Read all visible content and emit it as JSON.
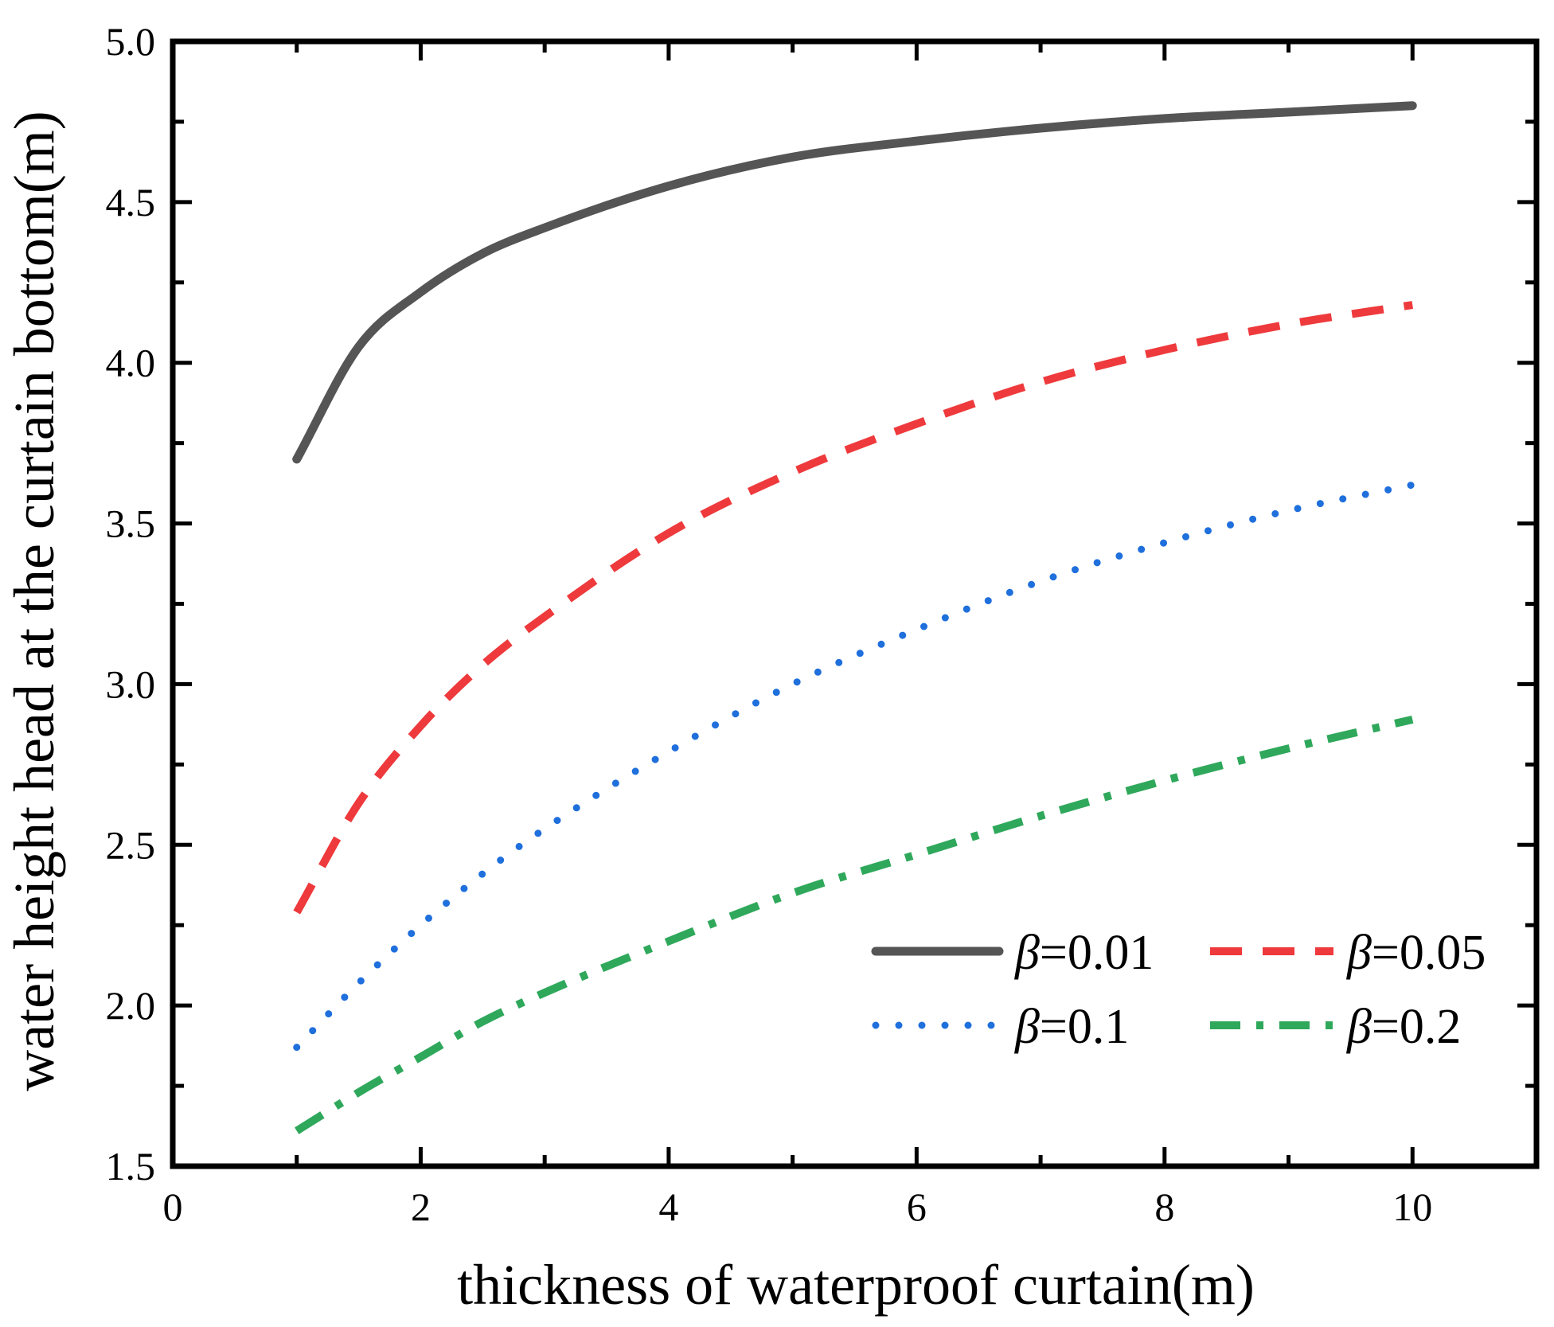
{
  "chart_data": {
    "type": "line",
    "title": "",
    "xlabel": "thickness of waterproof curtain(m)",
    "ylabel": "water height head at the curtain bottom(m)",
    "xlim": [
      0,
      11
    ],
    "ylim": [
      1.5,
      5.0
    ],
    "xticks": [
      0,
      2,
      4,
      6,
      8,
      10
    ],
    "xtick_labels": [
      "0",
      "2",
      "4",
      "6",
      "8",
      "10"
    ],
    "yticks": [
      1.5,
      2.0,
      2.5,
      3.0,
      3.5,
      4.0,
      4.5,
      5.0
    ],
    "ytick_labels": [
      "1.5",
      "2.0",
      "2.5",
      "3.0",
      "3.5",
      "4.0",
      "4.5",
      "5.0"
    ],
    "grid": false,
    "legend_position": "bottom-right",
    "x": [
      1,
      1.5,
      2,
      2.5,
      3,
      4,
      5,
      6,
      7,
      8,
      9,
      10
    ],
    "series": [
      {
        "name": "β=0.01",
        "symbol": "β",
        "value_label": "=0.01",
        "style": "solid",
        "color": "#555555",
        "values": [
          3.7,
          4.05,
          4.22,
          4.34,
          4.42,
          4.55,
          4.64,
          4.69,
          4.73,
          4.76,
          4.78,
          4.8
        ]
      },
      {
        "name": "β=0.05",
        "symbol": "β",
        "value_label": "=0.05",
        "style": "dash",
        "color": "#ee3a3c",
        "values": [
          2.29,
          2.63,
          2.87,
          3.06,
          3.21,
          3.47,
          3.66,
          3.81,
          3.94,
          4.04,
          4.12,
          4.18
        ]
      },
      {
        "name": "β=0.1",
        "symbol": "β",
        "value_label": "=0.1",
        "style": "dot",
        "color": "#1f6fdc",
        "values": [
          1.87,
          2.07,
          2.25,
          2.41,
          2.55,
          2.79,
          3.0,
          3.17,
          3.32,
          3.44,
          3.54,
          3.62
        ]
      },
      {
        "name": "β=0.2",
        "symbol": "β",
        "value_label": "=0.2",
        "style": "dashdot",
        "color": "#2fa85b",
        "values": [
          1.61,
          1.73,
          1.84,
          1.95,
          2.04,
          2.2,
          2.35,
          2.47,
          2.59,
          2.7,
          2.8,
          2.89
        ]
      }
    ]
  }
}
